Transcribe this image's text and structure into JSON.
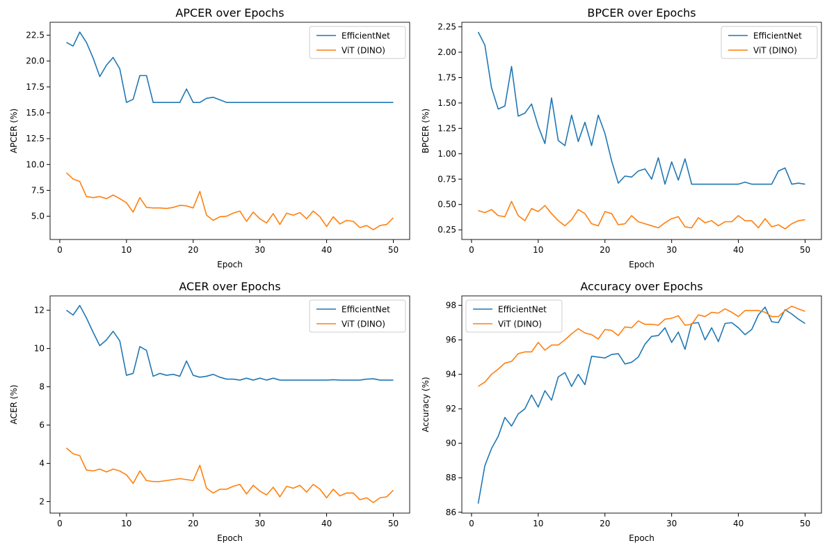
{
  "series_colors": {
    "EfficientNet": "#1f77b4",
    "ViT (DINO)": "#ff7f0e"
  },
  "chart_data": [
    {
      "type": "line",
      "title": "APCER over Epochs",
      "xlabel": "Epoch",
      "ylabel": "APCER (%)",
      "xlim": [
        -1.45,
        52.45
      ],
      "ylim": [
        2.75,
        23.75
      ],
      "xticks": [
        0,
        10,
        20,
        30,
        40,
        50
      ],
      "yticks": [
        5.0,
        7.5,
        10.0,
        12.5,
        15.0,
        17.5,
        20.0,
        22.5
      ],
      "ytick_labels": [
        "5.0",
        "7.5",
        "10.0",
        "12.5",
        "15.0",
        "17.5",
        "20.0",
        "22.5"
      ],
      "legend": "upper-right",
      "x": [
        1,
        2,
        3,
        4,
        5,
        6,
        7,
        8,
        9,
        10,
        11,
        12,
        13,
        14,
        15,
        16,
        17,
        18,
        19,
        20,
        21,
        22,
        23,
        24,
        25,
        26,
        27,
        28,
        29,
        30,
        31,
        32,
        33,
        34,
        35,
        36,
        37,
        38,
        39,
        40,
        41,
        42,
        43,
        44,
        45,
        46,
        47,
        48,
        49,
        50
      ],
      "series": [
        {
          "name": "EfficientNet",
          "values": [
            21.8,
            21.45,
            22.8,
            21.8,
            20.3,
            18.5,
            19.6,
            20.35,
            19.25,
            16.0,
            16.3,
            18.6,
            18.6,
            16.0,
            16.0,
            16.0,
            16.0,
            16.0,
            17.3,
            16.0,
            16.0,
            16.4,
            16.5,
            16.25,
            16.0,
            16.0,
            16.0,
            16.0,
            16.0,
            16.0,
            16.0,
            16.0,
            16.0,
            16.0,
            16.0,
            16.0,
            16.0,
            16.0,
            16.0,
            16.0,
            16.0,
            16.0,
            16.0,
            16.0,
            16.0,
            16.0,
            16.0,
            16.0,
            16.0,
            16.0
          ]
        },
        {
          "name": "ViT (DINO)",
          "values": [
            9.2,
            8.6,
            8.35,
            6.9,
            6.8,
            6.9,
            6.7,
            7.05,
            6.7,
            6.3,
            5.4,
            6.8,
            5.85,
            5.8,
            5.8,
            5.75,
            5.85,
            6.05,
            6.0,
            5.8,
            7.4,
            5.1,
            4.6,
            4.95,
            5.0,
            5.3,
            5.5,
            4.5,
            5.4,
            4.75,
            4.35,
            5.25,
            4.2,
            5.3,
            5.1,
            5.35,
            4.75,
            5.5,
            4.95,
            4.0,
            4.95,
            4.25,
            4.6,
            4.5,
            3.9,
            4.1,
            3.7,
            4.1,
            4.2,
            4.85
          ]
        }
      ]
    },
    {
      "type": "line",
      "title": "BPCER over Epochs",
      "xlabel": "Epoch",
      "ylabel": "BPCER (%)",
      "xlim": [
        -1.45,
        52.45
      ],
      "ylim": [
        0.155,
        2.295
      ],
      "xticks": [
        0,
        10,
        20,
        30,
        40,
        50
      ],
      "yticks": [
        0.25,
        0.5,
        0.75,
        1.0,
        1.25,
        1.5,
        1.75,
        2.0,
        2.25
      ],
      "ytick_labels": [
        "0.25",
        "0.50",
        "0.75",
        "1.00",
        "1.25",
        "1.50",
        "1.75",
        "2.00",
        "2.25"
      ],
      "legend": "upper-right",
      "x": [
        1,
        2,
        3,
        4,
        5,
        6,
        7,
        8,
        9,
        10,
        11,
        12,
        13,
        14,
        15,
        16,
        17,
        18,
        19,
        20,
        21,
        22,
        23,
        24,
        25,
        26,
        27,
        28,
        29,
        30,
        31,
        32,
        33,
        34,
        35,
        36,
        37,
        38,
        39,
        40,
        41,
        42,
        43,
        44,
        45,
        46,
        47,
        48,
        49,
        50
      ],
      "series": [
        {
          "name": "EfficientNet",
          "values": [
            2.2,
            2.07,
            1.65,
            1.44,
            1.47,
            1.86,
            1.37,
            1.4,
            1.49,
            1.27,
            1.1,
            1.55,
            1.13,
            1.08,
            1.38,
            1.12,
            1.31,
            1.08,
            1.38,
            1.2,
            0.93,
            0.71,
            0.78,
            0.77,
            0.83,
            0.85,
            0.75,
            0.96,
            0.7,
            0.92,
            0.74,
            0.95,
            0.7,
            0.7,
            0.7,
            0.7,
            0.7,
            0.7,
            0.7,
            0.7,
            0.72,
            0.7,
            0.7,
            0.7,
            0.7,
            0.83,
            0.86,
            0.7,
            0.71,
            0.7
          ]
        },
        {
          "name": "ViT (DINO)",
          "values": [
            0.44,
            0.42,
            0.45,
            0.39,
            0.38,
            0.53,
            0.39,
            0.34,
            0.46,
            0.43,
            0.49,
            0.41,
            0.34,
            0.29,
            0.35,
            0.45,
            0.41,
            0.31,
            0.29,
            0.43,
            0.41,
            0.3,
            0.31,
            0.39,
            0.33,
            0.31,
            0.29,
            0.27,
            0.32,
            0.36,
            0.38,
            0.28,
            0.27,
            0.37,
            0.32,
            0.34,
            0.29,
            0.33,
            0.33,
            0.39,
            0.34,
            0.34,
            0.27,
            0.36,
            0.28,
            0.3,
            0.26,
            0.31,
            0.34,
            0.35
          ]
        }
      ]
    },
    {
      "type": "line",
      "title": "ACER over Epochs",
      "xlabel": "Epoch",
      "ylabel": "ACER (%)",
      "xlim": [
        -1.45,
        52.45
      ],
      "ylim": [
        1.4,
        12.75
      ],
      "xticks": [
        0,
        10,
        20,
        30,
        40,
        50
      ],
      "yticks": [
        2,
        4,
        6,
        8,
        10,
        12
      ],
      "ytick_labels": [
        "2",
        "4",
        "6",
        "8",
        "10",
        "12"
      ],
      "legend": "upper-right",
      "x": [
        1,
        2,
        3,
        4,
        5,
        6,
        7,
        8,
        9,
        10,
        11,
        12,
        13,
        14,
        15,
        16,
        17,
        18,
        19,
        20,
        21,
        22,
        23,
        24,
        25,
        26,
        27,
        28,
        29,
        30,
        31,
        32,
        33,
        34,
        35,
        36,
        37,
        38,
        39,
        40,
        41,
        42,
        43,
        44,
        45,
        46,
        47,
        48,
        49,
        50
      ],
      "series": [
        {
          "name": "EfficientNet",
          "values": [
            12.0,
            11.75,
            12.25,
            11.6,
            10.85,
            10.15,
            10.45,
            10.9,
            10.4,
            8.6,
            8.7,
            10.1,
            9.9,
            8.55,
            8.7,
            8.6,
            8.65,
            8.55,
            9.35,
            8.6,
            8.5,
            8.55,
            8.65,
            8.5,
            8.4,
            8.4,
            8.35,
            8.45,
            8.35,
            8.45,
            8.35,
            8.45,
            8.35,
            8.35,
            8.35,
            8.35,
            8.35,
            8.35,
            8.35,
            8.35,
            8.37,
            8.35,
            8.35,
            8.35,
            8.35,
            8.4,
            8.42,
            8.35,
            8.35,
            8.35
          ]
        },
        {
          "name": "ViT (DINO)",
          "values": [
            4.8,
            4.5,
            4.4,
            3.65,
            3.6,
            3.7,
            3.55,
            3.7,
            3.6,
            3.4,
            2.95,
            3.6,
            3.1,
            3.05,
            3.05,
            3.1,
            3.15,
            3.2,
            3.15,
            3.1,
            3.9,
            2.7,
            2.45,
            2.65,
            2.65,
            2.8,
            2.9,
            2.4,
            2.85,
            2.55,
            2.35,
            2.75,
            2.25,
            2.8,
            2.7,
            2.85,
            2.5,
            2.9,
            2.65,
            2.2,
            2.65,
            2.3,
            2.45,
            2.45,
            2.1,
            2.2,
            1.95,
            2.2,
            2.25,
            2.6
          ]
        }
      ]
    },
    {
      "type": "line",
      "title": "Accuracy over Epochs",
      "xlabel": "Epoch",
      "ylabel": "Accuracy (%)",
      "xlim": [
        -1.45,
        52.45
      ],
      "ylim": [
        85.95,
        98.55
      ],
      "xticks": [
        0,
        10,
        20,
        30,
        40,
        50
      ],
      "yticks": [
        86,
        88,
        90,
        92,
        94,
        96,
        98
      ],
      "ytick_labels": [
        "86",
        "88",
        "90",
        "92",
        "94",
        "96",
        "98"
      ],
      "legend": "upper-left",
      "x": [
        1,
        2,
        3,
        4,
        5,
        6,
        7,
        8,
        9,
        10,
        11,
        12,
        13,
        14,
        15,
        16,
        17,
        18,
        19,
        20,
        21,
        22,
        23,
        24,
        25,
        26,
        27,
        28,
        29,
        30,
        31,
        32,
        33,
        34,
        35,
        36,
        37,
        38,
        39,
        40,
        41,
        42,
        43,
        44,
        45,
        46,
        47,
        48,
        49,
        50
      ],
      "series": [
        {
          "name": "EfficientNet",
          "values": [
            86.5,
            88.7,
            89.7,
            90.4,
            91.5,
            91.0,
            91.7,
            92.0,
            92.8,
            92.1,
            93.05,
            92.5,
            93.85,
            94.1,
            93.3,
            94.0,
            93.4,
            95.05,
            95.0,
            94.95,
            95.15,
            95.2,
            94.6,
            94.7,
            95.0,
            95.75,
            96.2,
            96.25,
            96.7,
            95.85,
            96.45,
            95.45,
            96.95,
            97.0,
            96.0,
            96.7,
            95.9,
            96.95,
            97.0,
            96.7,
            96.3,
            96.6,
            97.45,
            97.9,
            97.05,
            97.0,
            97.75,
            97.5,
            97.2,
            96.95
          ]
        },
        {
          "name": "ViT (DINO)",
          "values": [
            93.3,
            93.55,
            94.0,
            94.3,
            94.65,
            94.75,
            95.2,
            95.3,
            95.3,
            95.85,
            95.4,
            95.7,
            95.7,
            96.0,
            96.35,
            96.65,
            96.4,
            96.3,
            96.05,
            96.6,
            96.55,
            96.25,
            96.75,
            96.7,
            97.1,
            96.9,
            96.9,
            96.85,
            97.2,
            97.25,
            97.4,
            96.85,
            96.9,
            97.45,
            97.35,
            97.6,
            97.55,
            97.8,
            97.6,
            97.35,
            97.7,
            97.7,
            97.7,
            97.6,
            97.35,
            97.35,
            97.7,
            97.95,
            97.8,
            97.65
          ]
        }
      ]
    }
  ]
}
